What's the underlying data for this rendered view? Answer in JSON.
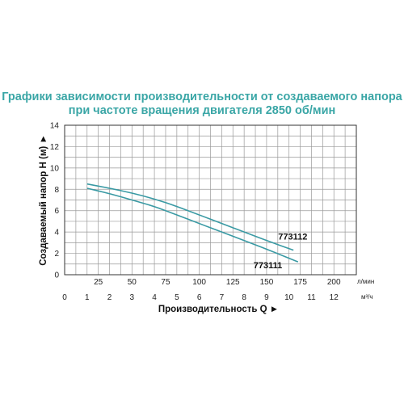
{
  "title_line1": "Графики зависимости производительности от создаваемого напора",
  "title_line2": "при частоте вращения двигателя 2850 об/мин",
  "chart_data": {
    "type": "line",
    "title": "Графики зависимости производительности от создаваемого напора при частоте вращения двигателя 2850 об/мин",
    "ylabel": "Создаваемый напор H (м) ►",
    "xlabel": "Производительность Q ►",
    "ylim": [
      0,
      14
    ],
    "y_ticks": [
      0,
      2,
      4,
      6,
      8,
      10,
      12,
      14
    ],
    "x_lpm_unit": "л/мин",
    "x_lpm_ticks": [
      "25",
      "50",
      "75",
      "100",
      "125",
      "150",
      "175",
      "200"
    ],
    "x_lpm_values": [
      25,
      50,
      75,
      100,
      125,
      150,
      175,
      200
    ],
    "x_m3h_unit": "м³/ч",
    "x_m3h_ticks": [
      "0",
      "1",
      "2",
      "3",
      "4",
      "5",
      "6",
      "7",
      "8",
      "9",
      "10",
      "11",
      "12"
    ],
    "xlim_m3h": [
      0,
      13
    ],
    "grid": true,
    "color": "#3a9aa4",
    "series": [
      {
        "name": "773112",
        "x": [
          1,
          2,
          3,
          4,
          5,
          6,
          7,
          8,
          9,
          10.2
        ],
        "y": [
          8.5,
          8.1,
          7.65,
          7.1,
          6.4,
          5.6,
          4.8,
          4.0,
          3.2,
          2.3
        ]
      },
      {
        "name": "773111",
        "x": [
          1,
          2,
          3,
          4,
          5,
          6,
          7,
          8,
          9,
          10.4
        ],
        "y": [
          8.1,
          7.6,
          7.0,
          6.4,
          5.6,
          4.8,
          4.0,
          3.2,
          2.4,
          1.2
        ]
      }
    ]
  }
}
